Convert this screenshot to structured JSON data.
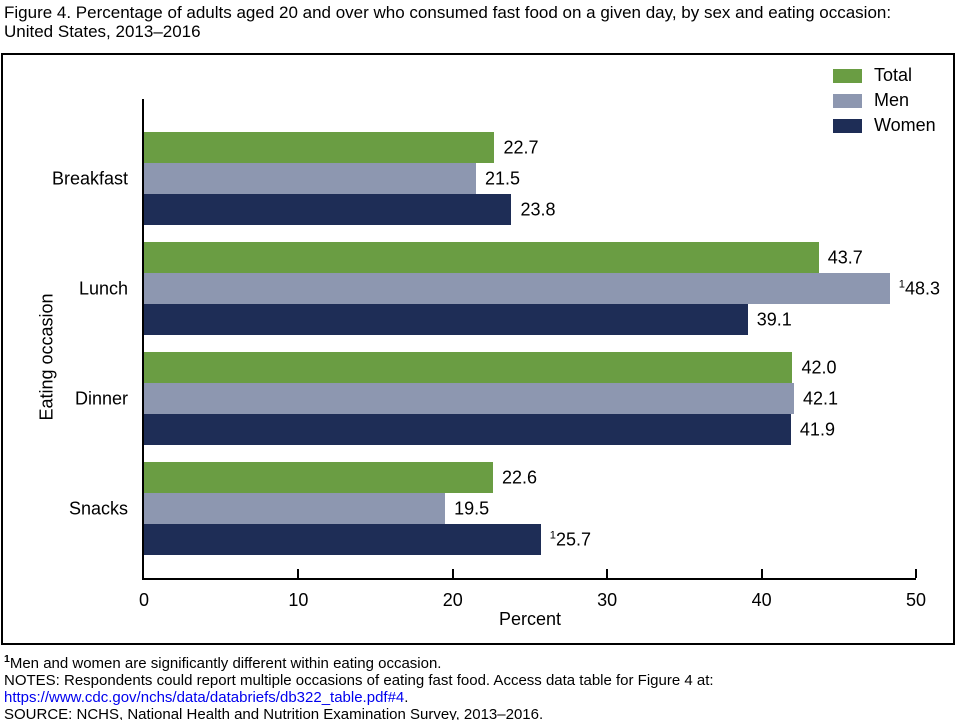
{
  "title": {
    "line1": "Figure 4. Percentage of adults aged 20 and over who consumed fast food on a given day, by sex and eating occasion:",
    "line2": "United States, 2013–2016"
  },
  "colors": {
    "total": "#6A9D43",
    "men": "#8D97B0",
    "women": "#1E2D56",
    "link": "#0000EE",
    "axis": "#000000"
  },
  "legend": [
    {
      "label": "Total",
      "color_key": "total"
    },
    {
      "label": "Men",
      "color_key": "men"
    },
    {
      "label": "Women",
      "color_key": "women"
    }
  ],
  "chart_data": {
    "type": "bar",
    "orientation": "horizontal",
    "title": "Figure 4. Percentage of adults aged 20 and over who consumed fast food on a given day, by sex and eating occasion: United States, 2013–2016",
    "categories": [
      "Breakfast",
      "Lunch",
      "Dinner",
      "Snacks"
    ],
    "series": [
      {
        "key": "total",
        "name": "Total",
        "values": [
          22.7,
          43.7,
          42.0,
          22.6
        ],
        "labels": [
          "22.7",
          "43.7",
          "42.0",
          "22.6"
        ],
        "sup": [
          "",
          "",
          "",
          ""
        ]
      },
      {
        "key": "men",
        "name": "Men",
        "values": [
          21.5,
          48.3,
          42.1,
          19.5
        ],
        "labels": [
          "21.5",
          "48.3",
          "42.1",
          "19.5"
        ],
        "sup": [
          "",
          "1",
          "",
          ""
        ]
      },
      {
        "key": "women",
        "name": "Women",
        "values": [
          23.8,
          39.1,
          41.9,
          25.7
        ],
        "labels": [
          "23.8",
          "39.1",
          "41.9",
          "25.7"
        ],
        "sup": [
          "",
          "",
          "",
          "1"
        ]
      }
    ],
    "xlabel": "Percent",
    "ylabel": "Eating occasion",
    "xlim": [
      0,
      50
    ],
    "xticks": [
      0,
      10,
      20,
      30,
      40,
      50
    ],
    "grid": false,
    "legend_position": "top-right"
  },
  "footnotes": {
    "sig_sup": "1",
    "sig_text": "Men and women are significantly different within eating occasion.",
    "notes": "NOTES: Respondents could report multiple occasions of eating fast food. Access data table for Figure 4 at:",
    "link": "https://www.cdc.gov/nchs/data/databriefs/db322_table.pdf#4",
    "link_suffix": ".",
    "source": "SOURCE: NCHS, National Health and Nutrition Examination Survey, 2013–2016."
  }
}
